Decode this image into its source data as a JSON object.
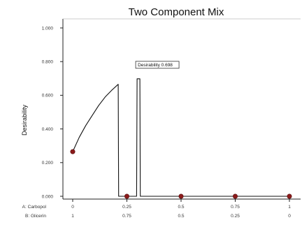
{
  "chart_data": {
    "type": "line",
    "title": "Two Component Mix",
    "ylabel": "Desirability",
    "xlabel": "",
    "ylim": [
      0,
      1
    ],
    "xlim": [
      0,
      1
    ],
    "yticks": [
      "0.000",
      "0.200",
      "0.400",
      "0.600",
      "0.800",
      "1.000"
    ],
    "x_axes": [
      {
        "name": "A: Carbopol",
        "ticks": [
          "0",
          "0.25",
          "0.5",
          "0.75",
          "1"
        ]
      },
      {
        "name": "B: Glicerin",
        "ticks": [
          "1",
          "0.75",
          "0.5",
          "0.25",
          "0"
        ]
      }
    ],
    "series": [
      {
        "values": [
          [
            0,
            0.265
          ],
          [
            0.03,
            0.35
          ],
          [
            0.06,
            0.42
          ],
          [
            0.09,
            0.48
          ],
          [
            0.12,
            0.54
          ],
          [
            0.15,
            0.59
          ],
          [
            0.18,
            0.63
          ],
          [
            0.21,
            0.665
          ],
          [
            0.212,
            0
          ],
          [
            0.295,
            0
          ],
          [
            0.297,
            0.698
          ],
          [
            0.31,
            0.698
          ],
          [
            0.312,
            0
          ],
          [
            1,
            0
          ]
        ]
      }
    ],
    "design_points": [
      [
        0,
        0.265
      ],
      [
        0.25,
        0
      ],
      [
        0.5,
        0
      ],
      [
        0.75,
        0
      ],
      [
        1,
        0
      ]
    ],
    "annotation": {
      "text": "Desirability  0.698",
      "x": 0.297,
      "y": 0.698
    },
    "colors": {
      "line": "#111111",
      "point": "#8b1a1a"
    },
    "grid": false
  }
}
